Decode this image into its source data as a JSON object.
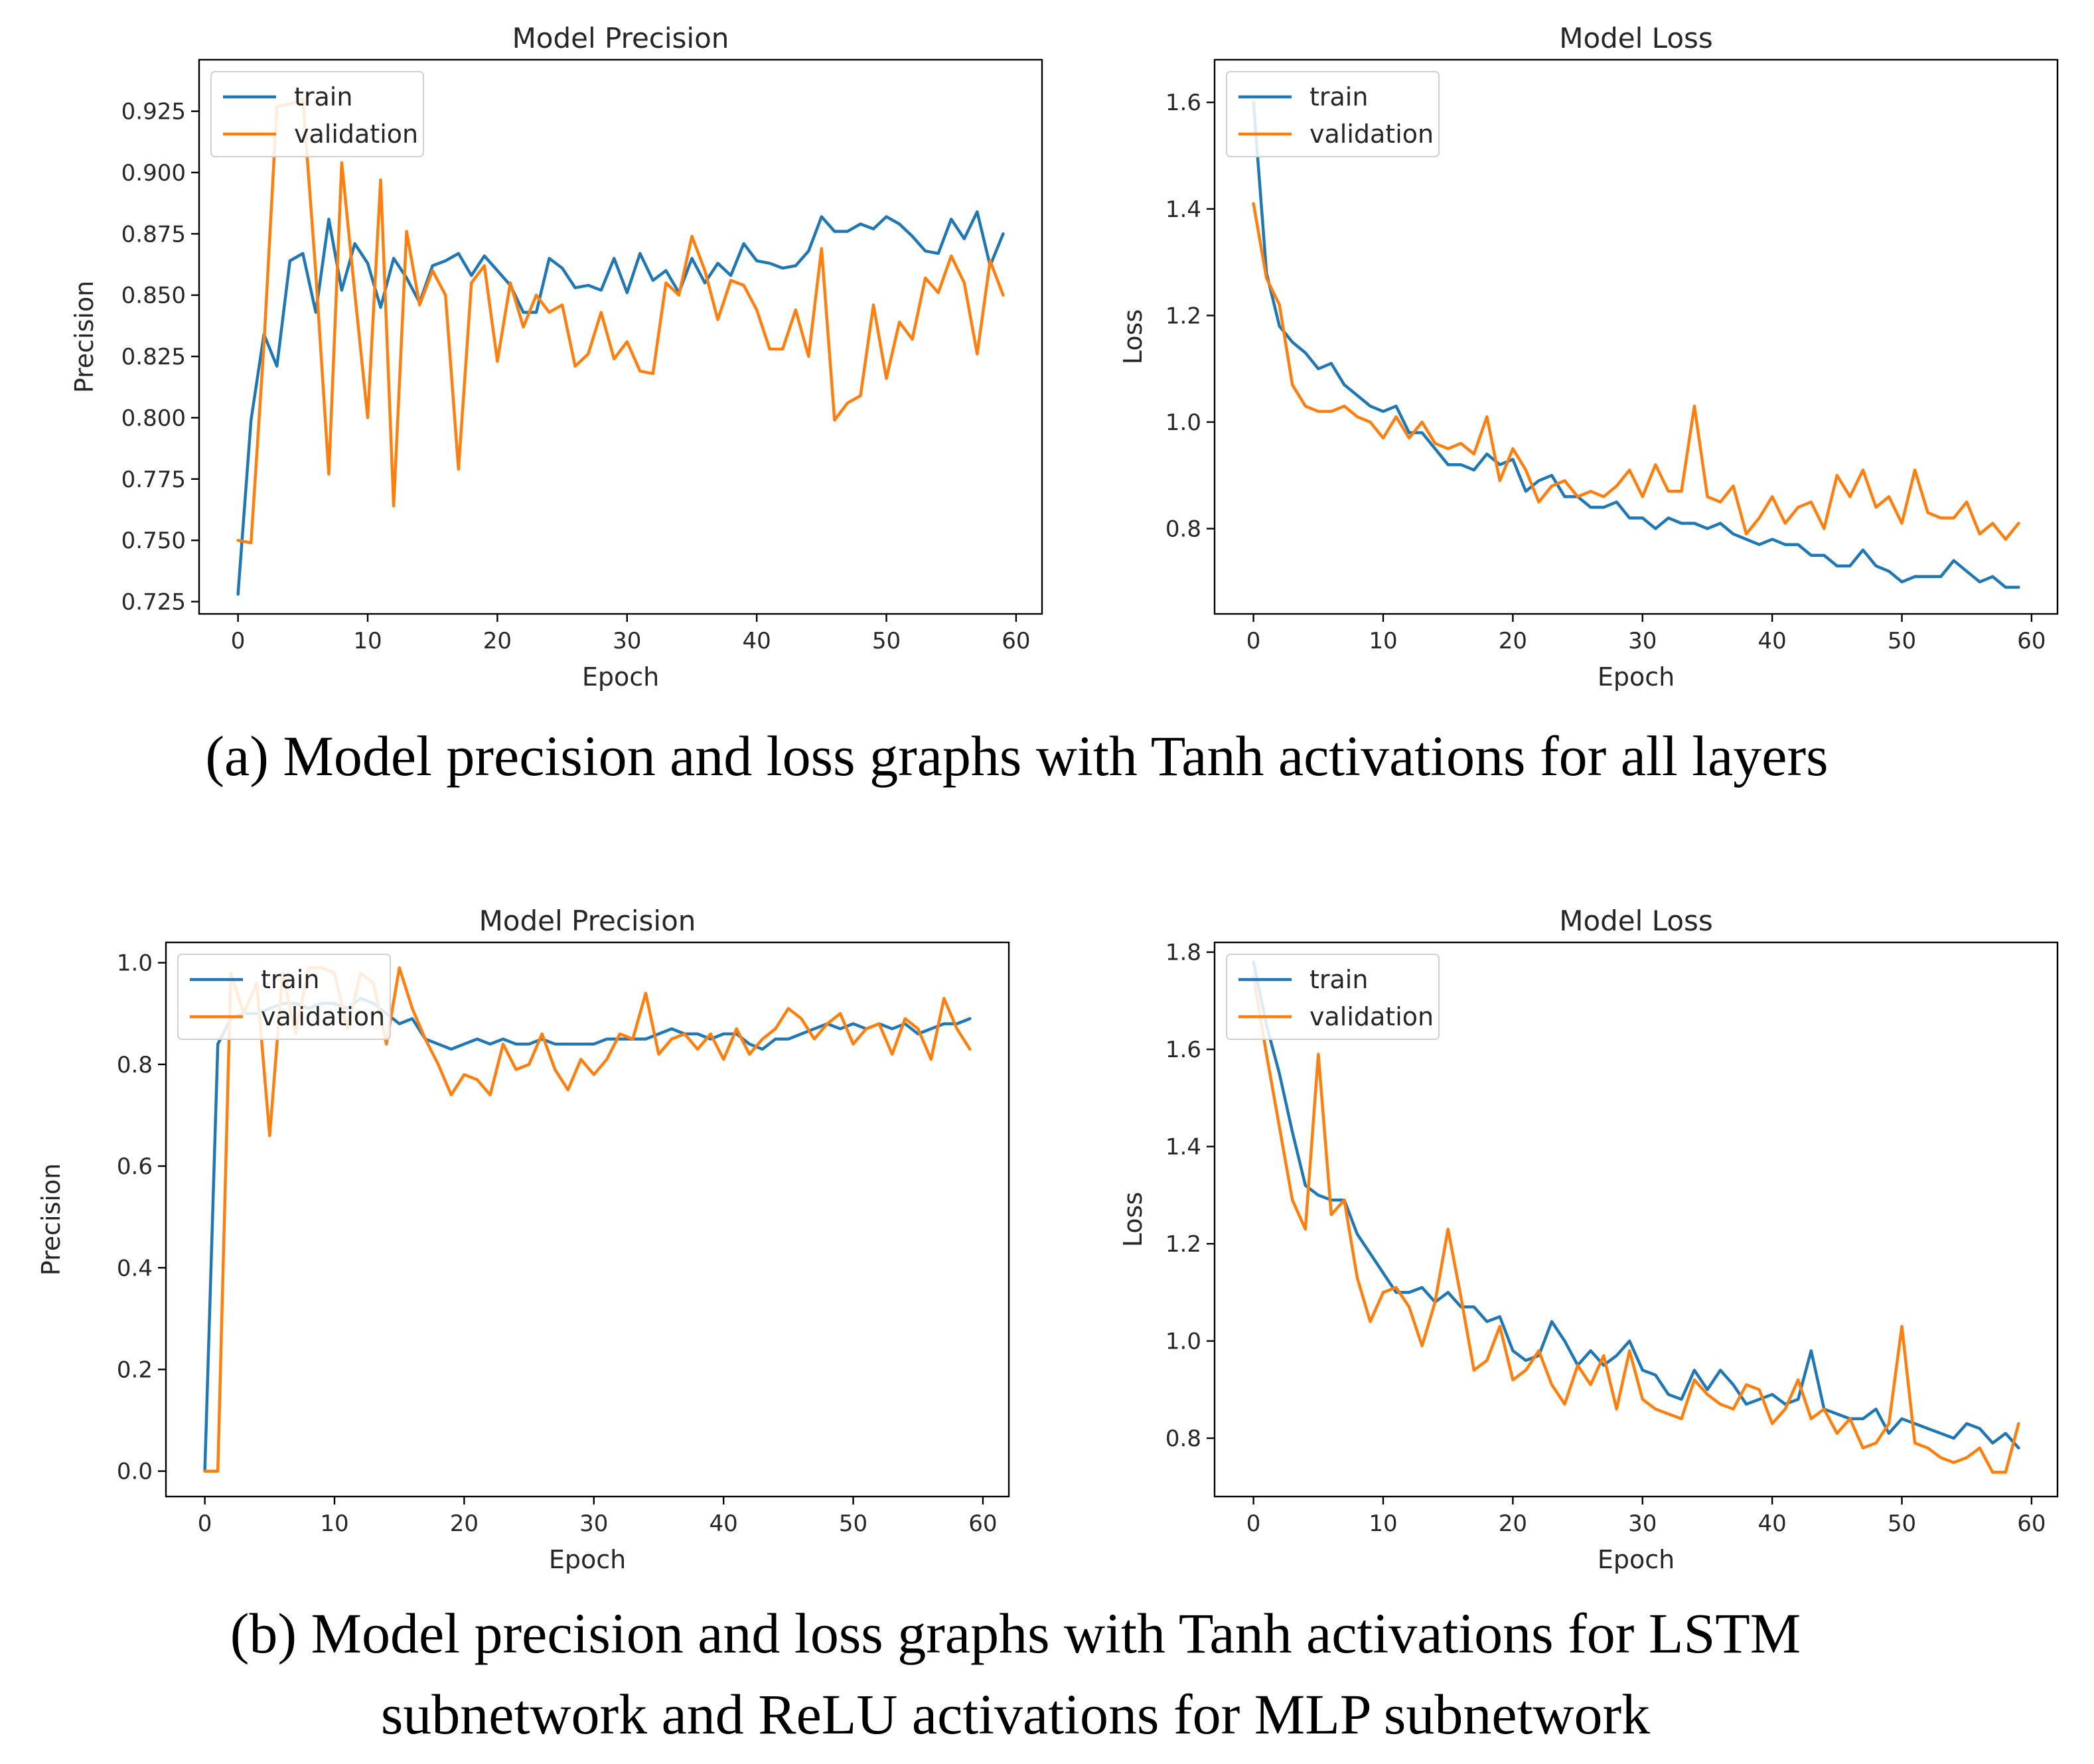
{
  "chart_data": [
    {
      "id": "a-precision",
      "type": "line",
      "title": "Model Precision",
      "xlabel": "Epoch",
      "ylabel": "Precision",
      "xlim": [
        -3,
        62
      ],
      "ylim": [
        0.72,
        0.946
      ],
      "xticks": [
        0,
        10,
        20,
        30,
        40,
        50,
        60
      ],
      "yticks": [
        "0.725",
        "0.750",
        "0.775",
        "0.800",
        "0.825",
        "0.850",
        "0.875",
        "0.900",
        "0.925"
      ],
      "legend_position": "top-left",
      "grid": false,
      "series": [
        {
          "name": "train",
          "color": "#1f77b4",
          "values": [
            0.728,
            0.799,
            0.834,
            0.821,
            0.864,
            0.867,
            0.843,
            0.881,
            0.852,
            0.871,
            0.863,
            0.845,
            0.865,
            0.857,
            0.847,
            0.862,
            0.864,
            0.867,
            0.858,
            0.866,
            0.86,
            0.854,
            0.843,
            0.843,
            0.865,
            0.861,
            0.853,
            0.854,
            0.852,
            0.865,
            0.851,
            0.867,
            0.856,
            0.86,
            0.851,
            0.865,
            0.855,
            0.863,
            0.858,
            0.871,
            0.864,
            0.863,
            0.861,
            0.862,
            0.868,
            0.882,
            0.876,
            0.876,
            0.879,
            0.877,
            0.882,
            0.879,
            0.874,
            0.868,
            0.867,
            0.881,
            0.873,
            0.884,
            0.862,
            0.875
          ]
        },
        {
          "name": "validation",
          "color": "#ff7f0e",
          "values": [
            0.75,
            0.749,
            0.83,
            0.927,
            0.928,
            0.93,
            0.859,
            0.777,
            0.904,
            0.851,
            0.8,
            0.897,
            0.764,
            0.876,
            0.846,
            0.86,
            0.85,
            0.779,
            0.855,
            0.862,
            0.823,
            0.855,
            0.837,
            0.85,
            0.843,
            0.846,
            0.821,
            0.826,
            0.843,
            0.824,
            0.831,
            0.819,
            0.818,
            0.855,
            0.85,
            0.874,
            0.86,
            0.84,
            0.856,
            0.854,
            0.844,
            0.828,
            0.828,
            0.844,
            0.825,
            0.869,
            0.799,
            0.806,
            0.809,
            0.846,
            0.816,
            0.839,
            0.832,
            0.857,
            0.851,
            0.866,
            0.855,
            0.826,
            0.864,
            0.85
          ]
        }
      ]
    },
    {
      "id": "a-loss",
      "type": "line",
      "title": "Model Loss",
      "xlabel": "Epoch",
      "ylabel": "Loss",
      "xlim": [
        -3,
        62
      ],
      "ylim": [
        0.64,
        1.68
      ],
      "xticks": [
        0,
        10,
        20,
        30,
        40,
        50,
        60
      ],
      "yticks": [
        "0.8",
        "1.0",
        "1.2",
        "1.4",
        "1.6"
      ],
      "legend_position": "top-left",
      "grid": false,
      "series": [
        {
          "name": "train",
          "color": "#1f77b4",
          "values": [
            1.6,
            1.28,
            1.18,
            1.15,
            1.13,
            1.1,
            1.11,
            1.07,
            1.05,
            1.03,
            1.02,
            1.03,
            0.98,
            0.98,
            0.95,
            0.92,
            0.92,
            0.91,
            0.94,
            0.92,
            0.93,
            0.87,
            0.89,
            0.9,
            0.86,
            0.86,
            0.84,
            0.84,
            0.85,
            0.82,
            0.82,
            0.8,
            0.82,
            0.81,
            0.81,
            0.8,
            0.81,
            0.79,
            0.78,
            0.77,
            0.78,
            0.77,
            0.77,
            0.75,
            0.75,
            0.73,
            0.73,
            0.76,
            0.73,
            0.72,
            0.7,
            0.71,
            0.71,
            0.71,
            0.74,
            0.72,
            0.7,
            0.71,
            0.69,
            0.69
          ]
        },
        {
          "name": "validation",
          "color": "#ff7f0e",
          "values": [
            1.41,
            1.27,
            1.22,
            1.07,
            1.03,
            1.02,
            1.02,
            1.03,
            1.01,
            1.0,
            0.97,
            1.01,
            0.97,
            1.0,
            0.96,
            0.95,
            0.96,
            0.94,
            1.01,
            0.89,
            0.95,
            0.91,
            0.85,
            0.88,
            0.89,
            0.86,
            0.87,
            0.86,
            0.88,
            0.91,
            0.86,
            0.92,
            0.87,
            0.87,
            1.03,
            0.86,
            0.85,
            0.88,
            0.79,
            0.82,
            0.86,
            0.81,
            0.84,
            0.85,
            0.8,
            0.9,
            0.86,
            0.91,
            0.84,
            0.86,
            0.81,
            0.91,
            0.83,
            0.82,
            0.82,
            0.85,
            0.79,
            0.81,
            0.78,
            0.81
          ]
        }
      ]
    },
    {
      "id": "b-precision",
      "type": "line",
      "title": "Model Precision",
      "xlabel": "Epoch",
      "ylabel": "Precision",
      "xlim": [
        -3,
        62
      ],
      "ylim": [
        -0.05,
        1.04
      ],
      "xticks": [
        0,
        10,
        20,
        30,
        40,
        50,
        60
      ],
      "yticks": [
        "0.0",
        "0.2",
        "0.4",
        "0.6",
        "0.8",
        "1.0"
      ],
      "legend_position": "top-left",
      "grid": false,
      "series": [
        {
          "name": "train",
          "color": "#1f77b4",
          "values": [
            0.0,
            0.84,
            0.89,
            0.9,
            0.9,
            0.91,
            0.92,
            0.92,
            0.91,
            0.92,
            0.92,
            0.91,
            0.93,
            0.92,
            0.9,
            0.88,
            0.89,
            0.85,
            0.84,
            0.83,
            0.84,
            0.85,
            0.84,
            0.85,
            0.84,
            0.84,
            0.85,
            0.84,
            0.84,
            0.84,
            0.84,
            0.85,
            0.85,
            0.85,
            0.85,
            0.86,
            0.87,
            0.86,
            0.86,
            0.85,
            0.86,
            0.86,
            0.84,
            0.83,
            0.85,
            0.85,
            0.86,
            0.87,
            0.88,
            0.87,
            0.88,
            0.87,
            0.88,
            0.87,
            0.88,
            0.86,
            0.87,
            0.88,
            0.88,
            0.89
          ]
        },
        {
          "name": "validation",
          "color": "#ff7f0e",
          "values": [
            0.0,
            0.0,
            0.98,
            0.9,
            0.96,
            0.66,
            0.98,
            0.86,
            0.99,
            0.99,
            0.98,
            0.87,
            0.98,
            0.96,
            0.84,
            0.99,
            0.91,
            0.85,
            0.8,
            0.74,
            0.78,
            0.77,
            0.74,
            0.84,
            0.79,
            0.8,
            0.86,
            0.79,
            0.75,
            0.81,
            0.78,
            0.81,
            0.86,
            0.85,
            0.94,
            0.82,
            0.85,
            0.86,
            0.83,
            0.86,
            0.81,
            0.87,
            0.82,
            0.85,
            0.87,
            0.91,
            0.89,
            0.85,
            0.88,
            0.9,
            0.84,
            0.87,
            0.88,
            0.82,
            0.89,
            0.87,
            0.81,
            0.93,
            0.87,
            0.83
          ]
        }
      ]
    },
    {
      "id": "b-loss",
      "type": "line",
      "title": "Model Loss",
      "xlabel": "Epoch",
      "ylabel": "Loss",
      "xlim": [
        -3,
        62
      ],
      "ylim": [
        0.68,
        1.82
      ],
      "xticks": [
        0,
        10,
        20,
        30,
        40,
        50,
        60
      ],
      "yticks": [
        "0.8",
        "1.0",
        "1.2",
        "1.4",
        "1.6",
        "1.8"
      ],
      "legend_position": "top-left",
      "grid": false,
      "series": [
        {
          "name": "train",
          "color": "#1f77b4",
          "values": [
            1.78,
            1.65,
            1.55,
            1.43,
            1.32,
            1.3,
            1.29,
            1.29,
            1.22,
            1.18,
            1.14,
            1.1,
            1.1,
            1.11,
            1.08,
            1.1,
            1.07,
            1.07,
            1.04,
            1.05,
            0.98,
            0.96,
            0.97,
            1.04,
            1.0,
            0.95,
            0.98,
            0.95,
            0.97,
            1.0,
            0.94,
            0.93,
            0.89,
            0.88,
            0.94,
            0.9,
            0.94,
            0.91,
            0.87,
            0.88,
            0.89,
            0.87,
            0.88,
            0.98,
            0.86,
            0.85,
            0.84,
            0.84,
            0.86,
            0.81,
            0.84,
            0.83,
            0.82,
            0.81,
            0.8,
            0.83,
            0.82,
            0.79,
            0.81,
            0.78
          ]
        },
        {
          "name": "validation",
          "color": "#ff7f0e",
          "values": [
            1.75,
            1.59,
            1.44,
            1.29,
            1.23,
            1.59,
            1.26,
            1.29,
            1.13,
            1.04,
            1.1,
            1.11,
            1.07,
            0.99,
            1.08,
            1.23,
            1.09,
            0.94,
            0.96,
            1.03,
            0.92,
            0.94,
            0.98,
            0.91,
            0.87,
            0.95,
            0.91,
            0.97,
            0.86,
            0.98,
            0.88,
            0.86,
            0.85,
            0.84,
            0.92,
            0.89,
            0.87,
            0.86,
            0.91,
            0.9,
            0.83,
            0.86,
            0.92,
            0.84,
            0.86,
            0.81,
            0.84,
            0.78,
            0.79,
            0.83,
            1.03,
            0.79,
            0.78,
            0.76,
            0.75,
            0.76,
            0.78,
            0.73,
            0.73,
            0.83
          ]
        }
      ]
    }
  ],
  "captions": {
    "a": "(a) Model precision and loss graphs with Tanh activations for all layers",
    "b_line1": "(b) Model precision and loss graphs with Tanh activations for LSTM",
    "b_line2": "subnetwork and ReLU activations for MLP subnetwork"
  }
}
